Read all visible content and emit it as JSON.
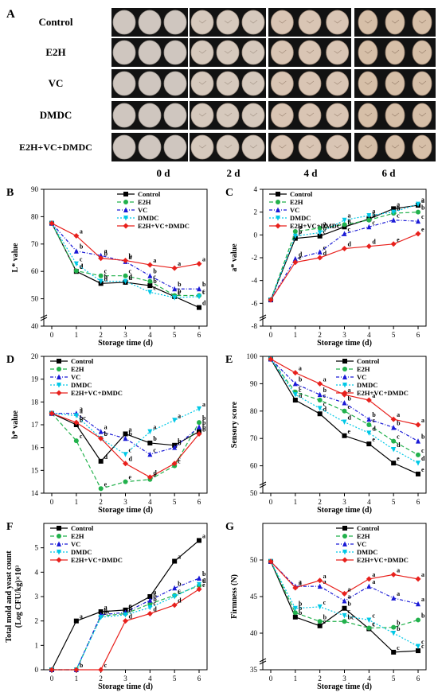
{
  "panel_a": {
    "letter": "A",
    "rows": [
      "Control",
      "E2H",
      "VC",
      "DMDC",
      "E2H+VC+DMDC"
    ],
    "days": [
      "0 d",
      "2 d",
      "4 d",
      "6 d"
    ]
  },
  "colors": {
    "Control": "#000000",
    "E2H": "#22b14c",
    "VC": "#1a1ad6",
    "DMDC": "#00c8e6",
    "E2H+VC+DMDC": "#e8201c"
  },
  "chart_data": [
    {
      "letter": "B",
      "type": "line",
      "ylabel": "L* value",
      "xlabel": "Storage time (d)",
      "x": [
        0,
        1,
        2,
        3,
        4,
        5,
        6
      ],
      "xticks": [
        0,
        1,
        2,
        3,
        4,
        5,
        6
      ],
      "ylim": [
        40,
        90
      ],
      "yticks": [
        40,
        50,
        60,
        70,
        80,
        90
      ],
      "ybreak": true,
      "legend": "top-right",
      "series": [
        {
          "name": "Control",
          "values": [
            77.6,
            60.0,
            55.6,
            56.0,
            54.8,
            50.8,
            46.8
          ],
          "letters": [
            "",
            "d",
            "d",
            "d",
            "b",
            "c",
            "d"
          ]
        },
        {
          "name": "E2H",
          "values": [
            77.6,
            60.2,
            58.4,
            58.4,
            56.4,
            51.2,
            51.2
          ],
          "letters": [
            "",
            "d",
            "c",
            "c",
            "c",
            "b",
            "c"
          ]
        },
        {
          "name": "VC",
          "values": [
            77.6,
            67.4,
            65.8,
            63.6,
            58.4,
            53.6,
            53.6
          ],
          "letters": [
            "",
            "b",
            "a",
            "a",
            "b",
            "b",
            "b"
          ]
        },
        {
          "name": "DMDC",
          "values": [
            77.6,
            62.8,
            56.4,
            56.4,
            52.4,
            50.4,
            50.8
          ],
          "letters": [
            "",
            "c",
            "b",
            "d",
            "c",
            "c",
            "c"
          ]
        },
        {
          "name": "E2H+VC+DMDC",
          "values": [
            77.6,
            73.0,
            64.8,
            64.0,
            62.4,
            61.2,
            62.8
          ],
          "letters": [
            "",
            "a",
            "b",
            "b",
            "a",
            "a",
            "a"
          ]
        }
      ]
    },
    {
      "letter": "C",
      "type": "line",
      "ylabel": "a* value",
      "xlabel": "Storage time (d)",
      "x": [
        0,
        1,
        2,
        3,
        4,
        5,
        6
      ],
      "xticks": [
        0,
        1,
        2,
        3,
        4,
        5,
        6
      ],
      "ylim": [
        -8,
        4
      ],
      "yticks": [
        -8,
        -6,
        -4,
        -2,
        0,
        2,
        4
      ],
      "ybreak": true,
      "legend": "top-left",
      "series": [
        {
          "name": "Control",
          "values": [
            -5.7,
            -0.3,
            -0.1,
            0.7,
            1.4,
            2.3,
            2.6
          ],
          "letters": [
            "",
            "c",
            "c",
            "b",
            "b",
            "a",
            "a"
          ]
        },
        {
          "name": "E2H",
          "values": [
            -5.7,
            0.3,
            0.6,
            0.9,
            1.3,
            1.9,
            2.0
          ],
          "letters": [
            "",
            "a",
            "a",
            "a",
            "a",
            "b",
            "b"
          ]
        },
        {
          "name": "VC",
          "values": [
            -5.7,
            -2.1,
            -1.5,
            0.1,
            0.7,
            1.3,
            1.2
          ],
          "letters": [
            "",
            "d",
            "c",
            "c",
            "c",
            "c",
            "c"
          ]
        },
        {
          "name": "DMDC",
          "values": [
            -5.7,
            -0.1,
            0.2,
            1.3,
            1.7,
            2.0,
            2.7
          ],
          "letters": [
            "",
            "b",
            "b",
            "a",
            "a",
            "a",
            "a"
          ]
        },
        {
          "name": "E2H+VC+DMDC",
          "values": [
            -5.7,
            -2.4,
            -2.0,
            -1.2,
            -1.0,
            -0.8,
            0.1
          ],
          "letters": [
            "",
            "e",
            "d",
            "d",
            "d",
            "e",
            "e"
          ]
        }
      ]
    },
    {
      "letter": "D",
      "type": "line",
      "ylabel": "b* value",
      "xlabel": "Storage time (d)",
      "x": [
        0,
        1,
        2,
        3,
        4,
        5,
        6
      ],
      "xticks": [
        0,
        1,
        2,
        3,
        4,
        5,
        6
      ],
      "ylim": [
        14,
        20
      ],
      "yticks": [
        14,
        15,
        16,
        17,
        18,
        19,
        20
      ],
      "ybreak": false,
      "legend": "top-left",
      "series": [
        {
          "name": "Control",
          "values": [
            17.5,
            17.0,
            15.4,
            16.6,
            16.2,
            16.1,
            16.7
          ],
          "letters": [
            "",
            "b",
            "d",
            "a",
            "b",
            "b",
            "b"
          ]
        },
        {
          "name": "E2H",
          "values": [
            17.5,
            16.3,
            14.2,
            14.5,
            14.6,
            15.2,
            17.1
          ],
          "letters": [
            "",
            "c",
            "e",
            "e",
            "e",
            "c",
            "b"
          ]
        },
        {
          "name": "VC",
          "values": [
            17.5,
            17.5,
            16.7,
            16.4,
            15.7,
            16.0,
            16.9
          ],
          "letters": [
            "",
            "a",
            "a",
            "b",
            "c",
            "b",
            "b"
          ]
        },
        {
          "name": "DMDC",
          "values": [
            17.5,
            17.4,
            16.4,
            15.7,
            16.7,
            17.2,
            17.7
          ],
          "letters": [
            "",
            "a",
            "b",
            "c",
            "a",
            "a",
            "a"
          ]
        },
        {
          "name": "E2H+VC+DMDC",
          "values": [
            17.5,
            17.1,
            16.4,
            15.3,
            14.7,
            15.3,
            16.6
          ],
          "letters": [
            "",
            "bc",
            "c",
            "d",
            "d",
            "c",
            "b"
          ]
        }
      ]
    },
    {
      "letter": "E",
      "type": "line",
      "ylabel": "Sensory score",
      "xlabel": "Storage time (d)",
      "x": [
        0,
        1,
        2,
        3,
        4,
        5,
        6
      ],
      "xticks": [
        0,
        1,
        2,
        3,
        4,
        5,
        6
      ],
      "ylim": [
        50,
        100
      ],
      "yticks": [
        50,
        60,
        70,
        80,
        90,
        100
      ],
      "ybreak": true,
      "legend": "top-right",
      "series": [
        {
          "name": "Control",
          "values": [
            99,
            84,
            79,
            71,
            68,
            61,
            57
          ],
          "letters": [
            "",
            "d",
            "d",
            "e",
            "e",
            "e",
            "e"
          ]
        },
        {
          "name": "E2H",
          "values": [
            99,
            87,
            84,
            80,
            75,
            69,
            64
          ],
          "letters": [
            "",
            "c",
            "c",
            "c",
            "c",
            "c",
            "c"
          ]
        },
        {
          "name": "VC",
          "values": [
            99,
            90,
            86,
            83,
            77,
            74,
            69
          ],
          "letters": [
            "",
            "b",
            "b",
            "b",
            "b",
            "b",
            "b"
          ]
        },
        {
          "name": "DMDC",
          "values": [
            99,
            86,
            81,
            76,
            72,
            66,
            61
          ],
          "letters": [
            "",
            "c",
            "c",
            "d",
            "d",
            "d",
            "d"
          ]
        },
        {
          "name": "E2H+VC+DMDC",
          "values": [
            99,
            94,
            90,
            86,
            84,
            77,
            75
          ],
          "letters": [
            "",
            "a",
            "a",
            "a",
            "a",
            "a",
            "a"
          ]
        }
      ]
    },
    {
      "letter": "F",
      "type": "line",
      "ylabel": "Total mold and yeast count",
      "ylabel2": "(Log CFU/kg)×10³",
      "xlabel": "Storage time (d)",
      "x": [
        0,
        1,
        2,
        3,
        4,
        5,
        6
      ],
      "xticks": [
        0,
        1,
        2,
        3,
        4,
        5,
        6
      ],
      "ylim": [
        0,
        6
      ],
      "yticks": [
        0,
        1,
        2,
        3,
        4,
        5
      ],
      "ybreak": false,
      "legend": "top-left",
      "series": [
        {
          "name": "Control",
          "values": [
            0,
            2.0,
            2.38,
            2.45,
            3.0,
            4.45,
            5.3
          ],
          "letters": [
            "",
            "a",
            "a",
            "a",
            "a",
            "a",
            "a"
          ]
        },
        {
          "name": "E2H",
          "values": [
            0,
            0,
            2.2,
            2.3,
            2.7,
            3.05,
            3.45
          ],
          "letters": [
            "",
            "",
            "bc",
            "b",
            "b",
            "c",
            "d"
          ]
        },
        {
          "name": "VC",
          "values": [
            0,
            0,
            2.25,
            2.35,
            2.85,
            3.35,
            3.75
          ],
          "letters": [
            "",
            "b",
            "b",
            "b",
            "b",
            "b",
            "b"
          ]
        },
        {
          "name": "DMDC",
          "values": [
            0,
            0,
            2.15,
            2.25,
            2.55,
            3.0,
            3.5
          ],
          "letters": [
            "",
            "",
            "c",
            "c",
            "c",
            "c",
            "c"
          ]
        },
        {
          "name": "E2H+VC+DMDC",
          "values": [
            0,
            0,
            0,
            2.0,
            2.3,
            2.65,
            3.3
          ],
          "letters": [
            "",
            "",
            "c",
            "d",
            "d",
            "d",
            "e"
          ]
        }
      ]
    },
    {
      "letter": "G",
      "type": "line",
      "ylabel": "Firmness (N)",
      "xlabel": "Storage time (d)",
      "x": [
        0,
        1,
        2,
        3,
        4,
        5,
        6
      ],
      "xticks": [
        0,
        1,
        2,
        3,
        4,
        5,
        6
      ],
      "ylim": [
        35,
        55
      ],
      "yticks": [
        35,
        40,
        45,
        50
      ],
      "ybreak": true,
      "legend": "top-right",
      "series": [
        {
          "name": "Control",
          "values": [
            49.8,
            42.2,
            41.0,
            43.4,
            40.6,
            37.4,
            37.6
          ],
          "letters": [
            "",
            "b",
            "c",
            "b",
            "c",
            "c",
            "c"
          ]
        },
        {
          "name": "E2H",
          "values": [
            49.8,
            42.8,
            41.6,
            41.6,
            40.7,
            40.8,
            41.8
          ],
          "letters": [
            "",
            "b",
            "b",
            "bc",
            "c",
            "b",
            "b"
          ]
        },
        {
          "name": "VC",
          "values": [
            49.8,
            46.4,
            46.4,
            44.4,
            46.4,
            44.8,
            44.0
          ],
          "letters": [
            "",
            "a",
            "a",
            "a",
            "a",
            "a",
            "a"
          ]
        },
        {
          "name": "DMDC",
          "values": [
            49.8,
            43.4,
            43.6,
            42.4,
            41.8,
            40.0,
            38.2
          ],
          "letters": [
            "",
            "b",
            "c",
            "c",
            "c",
            "b",
            "c"
          ]
        },
        {
          "name": "E2H+VC+DMDC",
          "values": [
            49.8,
            46.2,
            47.2,
            45.4,
            47.4,
            48.0,
            47.4
          ],
          "letters": [
            "",
            "a",
            "a",
            "a",
            "a",
            "a",
            "a"
          ]
        }
      ]
    }
  ]
}
